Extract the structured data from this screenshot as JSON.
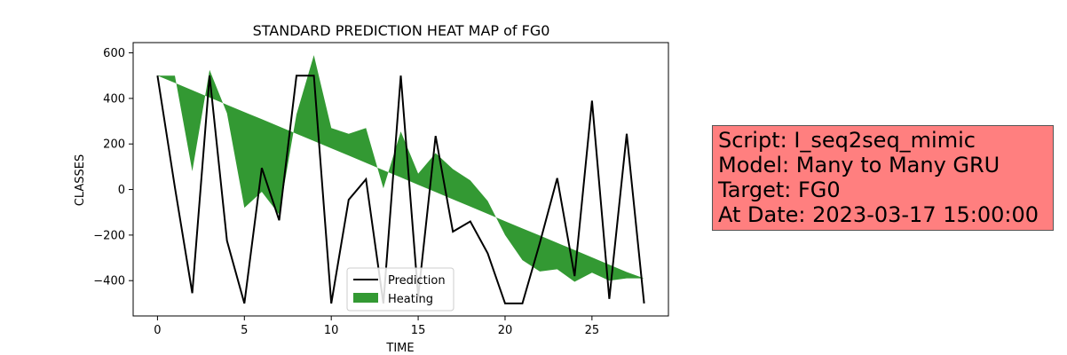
{
  "chart_data": {
    "type": "line",
    "title": "STANDARD PREDICTION HEAT MAP of FG0",
    "xlabel": "TIME",
    "ylabel": "CLASSES",
    "xlim": [
      -1.4,
      29.4
    ],
    "ylim": [
      -555,
      645
    ],
    "xticks": [
      0,
      5,
      10,
      15,
      20,
      25
    ],
    "yticks": [
      -400,
      -200,
      0,
      200,
      400,
      600
    ],
    "x": [
      0,
      1,
      2,
      3,
      4,
      5,
      6,
      7,
      8,
      9,
      10,
      11,
      12,
      13,
      14,
      15,
      16,
      17,
      18,
      19,
      20,
      21,
      22,
      23,
      24,
      25,
      26,
      27,
      28
    ],
    "series": [
      {
        "name": "Prediction",
        "kind": "line",
        "color": "#000000",
        "values": [
          500,
          10,
          -455,
          500,
          -225,
          -500,
          95,
          -135,
          500,
          500,
          -500,
          -45,
          45,
          -500,
          500,
          -470,
          235,
          -185,
          -140,
          -280,
          -500,
          -500,
          -235,
          50,
          -380,
          390,
          -480,
          245,
          -500
        ]
      },
      {
        "name": "Heating",
        "kind": "fill_between",
        "color": "#007f00",
        "upper_or_a": [
          500,
          500,
          80,
          525,
          335,
          -80,
          -10,
          -110,
          330,
          590,
          270,
          245,
          270,
          5,
          255,
          70,
          160,
          90,
          40,
          -50,
          -200,
          -310,
          -360,
          -350,
          -405,
          -365,
          -400,
          -390,
          -390
        ],
        "lower_or_b": [
          500,
          468,
          436,
          404,
          372,
          340,
          309,
          277,
          245,
          213,
          181,
          149,
          117,
          85,
          53,
          21,
          -11,
          -43,
          -75,
          -107,
          -139,
          -171,
          -202,
          -234,
          -266,
          -298,
          -330,
          -362,
          -390
        ]
      }
    ],
    "legend": {
      "position": "lower-center",
      "entries": [
        "Prediction",
        "Heating"
      ]
    },
    "grid": false
  },
  "info_box": {
    "lines": [
      "Script: I_seq2seq_mimic",
      "Model: Many to Many GRU",
      "Target: FG0",
      "At Date: 2023-03-17 15:00:00"
    ],
    "background": "#ff7f7f"
  }
}
